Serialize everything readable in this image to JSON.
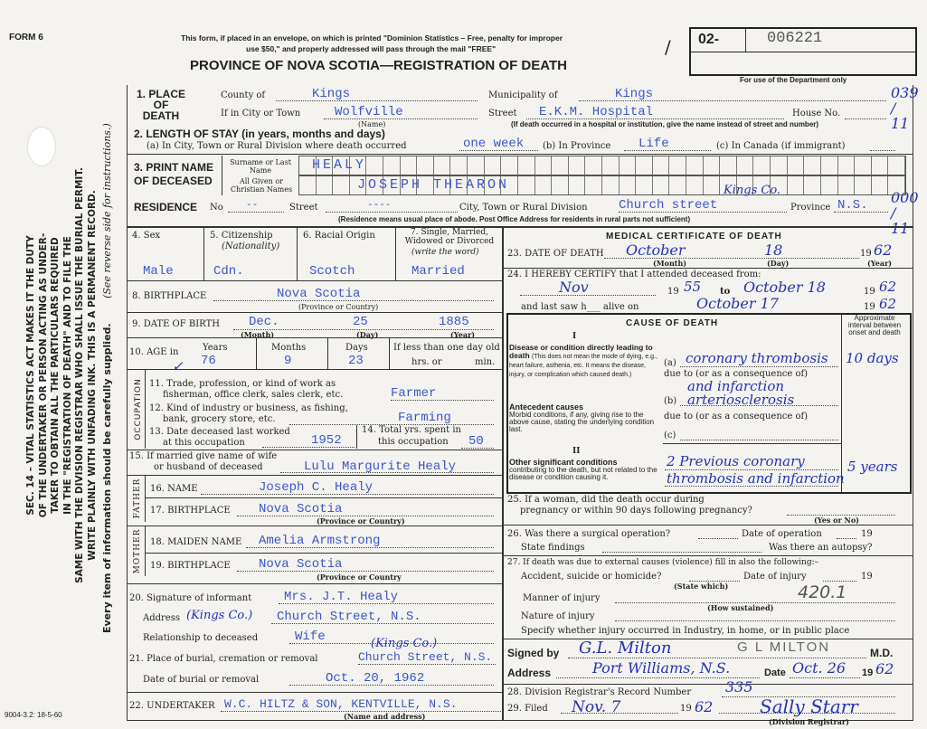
{
  "form_number": "FORM 6",
  "mail_notice_1": "This form, if placed in an envelope, on which is printed \"Dominion Statistics – Free, penalty for improper",
  "mail_notice_2": "use $50,\" and properly addressed will pass through the mail \"FREE\"",
  "title": "PROVINCE OF NOVA SCOTIA—REGISTRATION OF DEATH",
  "reg_prefix": "02-",
  "reg_number": "006221",
  "dept_only": "For use of the Department only",
  "dept_codes": [
    "039 / 11",
    "000 / 11"
  ],
  "side_text": {
    "lines": [
      "SEC. 14 – VITAL STATISTICS ACT MAKES IT THE DUTY",
      "OF THE UNDERTAKER OR PERSON ACTING AS UNDER-",
      "TAKER TO OBTAIN ALL THE PARTICULARS REQUIRED",
      "IN THE \"REGISTRATION OF DEATH\" AND TO FILE THE",
      "SAME WITH THE DIVISION REGISTRAR WHO SHALL ISSUE THE BURIAL PERMIT.",
      "WRITE PLAINLY WITH UNFADING INK. THIS IS A PERMANENT RECORD."
    ],
    "every_item": "Every item of information should be carefully supplied.",
    "see_reverse": "(See reverse side for instructions.)"
  },
  "place": {
    "heading": "1. PLACE OF DEATH",
    "county_label": "County of",
    "county": "Kings",
    "municipality_label": "Municipality of",
    "municipality": "Kings",
    "city_label": "If in City or Town",
    "city": "Wolfville",
    "name_note": "(Name)",
    "street_label": "Street",
    "street": "E.K.M. Hospital",
    "house_label": "House No.",
    "note": "(If death occurred in a hospital or institution, give the name instead of street and number)"
  },
  "stay": {
    "heading": "2. LENGTH OF STAY (in years, months and days)",
    "a_label": "(a) In City, Town or Rural Division where death occurred",
    "a": "one week",
    "b_label": "(b) In Province",
    "b": "Life",
    "c_label": "(c) In Canada (if immigrant)"
  },
  "name": {
    "heading": "3. PRINT NAME OF DECEASED",
    "surname_label": "Surname or Last Name",
    "surname": "HEALY",
    "given_label": "All Given or Christian Names",
    "given": "JOSEPH THEARON"
  },
  "residence": {
    "heading": "RESIDENCE",
    "no_label": "No",
    "no": "--",
    "street_label": "Street",
    "street": "----",
    "city_label": "City, Town or Rural Division",
    "city": "Church street",
    "city_hw": "Kings Co.",
    "province_label": "Province",
    "province": "N.S.",
    "note": "(Residence means usual place of abode. Post Office Address for residents in rural parts not sufficient)"
  },
  "personal": {
    "sex_label": "4. Sex",
    "sex": "Male",
    "citizenship_label": "5. Citizenship",
    "citizenship_sub": "(Nationality)",
    "citizenship": "Cdn.",
    "racial_label": "6. Racial Origin",
    "racial": "Scotch",
    "marital_label": "7. Single, Married, Widowed or Divorced",
    "marital_sub": "(write the word)",
    "marital": "Married"
  },
  "birthplace": {
    "label": "8. BIRTHPLACE",
    "value": "Nova Scotia",
    "sub": "(Province or Country)"
  },
  "dob": {
    "label": "9. DATE OF BIRTH",
    "month": "Dec.",
    "day": "25",
    "year": "1885",
    "month_sub": "(Month)",
    "day_sub": "(Day)",
    "year_sub": "(Year)"
  },
  "age": {
    "label": "10. AGE in",
    "years_label": "Years",
    "years": "76",
    "months_label": "Months",
    "months": "9",
    "days_label": "Days",
    "days": "23",
    "less_label": "If less than one day old",
    "hrs_label": "hrs. or",
    "min_label": "min."
  },
  "occupation": {
    "side": "OCCUPATION",
    "trade_label_1": "11. Trade, profession, or kind of work as",
    "trade_label_2": "fisherman, office clerk, sales clerk, etc.",
    "trade": "Farmer",
    "industry_label_1": "12. Kind of industry or business, as fishing,",
    "industry_label_2": "bank, grocery store, etc.",
    "industry": "Farming",
    "last_worked_label_1": "13. Date deceased last worked",
    "last_worked_label_2": "at this occupation",
    "last_worked": "1952",
    "total_label_1": "14. Total yrs. spent in",
    "total_label_2": "this occupation",
    "total": "50"
  },
  "spouse": {
    "label_1": "15. If married give name of wife",
    "label_2": "or husband of deceased",
    "value": "Lulu Margurite Healy"
  },
  "father": {
    "side": "FATHER",
    "name_label": "16. NAME",
    "name": "Joseph C. Healy",
    "birthplace_label": "17. BIRTHPLACE",
    "birthplace": "Nova Scotia",
    "sub": "(Province or Country)"
  },
  "mother": {
    "side": "MOTHER",
    "maiden_label": "18. MAIDEN NAME",
    "maiden": "Amelia Armstrong",
    "birthplace_label": "19. BIRTHPLACE",
    "birthplace": "Nova Scotia",
    "sub": "(Province or Country"
  },
  "informant": {
    "label": "20. Signature of informant",
    "name": "Mrs. J.T. Healy",
    "address_label": "Address",
    "address_hw": "(Kings Co.)",
    "address": "Church Street, N.S.",
    "relationship_label": "Relationship to deceased",
    "relationship": "Wife"
  },
  "burial": {
    "place_label": "21. Place of burial, cremation or removal",
    "place_hw": "(Kings Co.)",
    "place": "Church Street, N.S.",
    "date_label": "Date of burial or removal",
    "date": "Oct. 20, 1962"
  },
  "undertaker": {
    "label": "22. UNDERTAKER",
    "value": "W.C. HILTZ & SON, KENTVILLE, N.S.",
    "sub": "(Name and address)"
  },
  "medical": {
    "title": "MEDICAL CERTIFICATE OF DEATH",
    "death_label": "23. DATE OF DEATH",
    "death_month": "October",
    "death_day": "18",
    "death_year_prefix": "19",
    "death_year": "62",
    "month_sub": "(Month)",
    "day_sub": "(Day)",
    "year_sub": "(Year)",
    "certify_label": "24. I HEREBY CERTIFY that I attended deceased from:",
    "from": "Nov",
    "from_year": "55",
    "to_label": "to",
    "to": "October 18",
    "to_year": "62",
    "nineteen": "19",
    "last_saw_label": "and last saw h___ alive on",
    "last_saw": "October 17",
    "last_saw_year": "62"
  },
  "cause": {
    "title": "CAUSE OF DEATH",
    "roman1": "I",
    "roman2": "II",
    "interval_header": "Approximate interval between onset and death",
    "direct_title": "Disease or condition directly leading to death",
    "direct_note": "(This does not mean the mode of dying, e.g., heart failure, asthenia, etc. It means the disease, injury, or complication which caused death.)",
    "antecedent_title": "Antecedent causes",
    "antecedent_note": "Morbid conditions, if any, giving rise to the above cause, stating the underlying condition last.",
    "other_title": "Other significant conditions",
    "other_note": "contributing to the death, but not related to the disease or condition causing it.",
    "a_label": "(a)",
    "a": "coronary thrombosis",
    "a_interval": "10 days",
    "due_to": "due to (or as a consequence of)",
    "a_due": "and infarction",
    "b_label": "(b)",
    "b": "arteriosclerosis",
    "c_label": "(c)",
    "other_1": "2 Previous coronary",
    "other_2": "thrombosis and infarction",
    "other_interval": "5 years"
  },
  "q25": {
    "label_1": "25. If a woman, did the death occur during",
    "label_2": "pregnancy or within 90 days following pregnancy?",
    "sub": "(Yes or No)"
  },
  "q26": {
    "label": "26. Was there a surgical operation?",
    "date_label": "Date of operation",
    "year_prefix": "19",
    "findings_label": "State findings",
    "autopsy_label": "Was there an autopsy?"
  },
  "q27": {
    "label": "27. If death was due to external causes (violence) fill in also the following:–",
    "accident_label": "Accident, suicide or homicide?",
    "state_which": "(State which)",
    "injury_date_label": "Date of injury",
    "year_prefix": "19",
    "manner_label": "Manner of injury",
    "how_sustained": "(How sustained)",
    "code": "420.1",
    "nature_label": "Nature of injury",
    "specify_label": "Specify whether injury occurred in Industry, in home, or in public place"
  },
  "signature": {
    "signed_label": "Signed by",
    "signed": "G.L. Milton",
    "signed_print": "G L MILTON",
    "md": "M.D.",
    "address_label": "Address",
    "address": "Port Williams, N.S.",
    "date_label": "Date",
    "date": "Oct. 26",
    "year_prefix": "19",
    "year": "62"
  },
  "q28": {
    "label": "28. Division Registrar's Record Number",
    "value": "335"
  },
  "q29": {
    "label": "29. Filed",
    "value": "Nov. 7",
    "year_prefix": "19",
    "year": "62",
    "registrar": "Sally Starr",
    "registrar_sub": "(Division Registrar)"
  },
  "print_code": "9004-3.2: 18-5-60"
}
